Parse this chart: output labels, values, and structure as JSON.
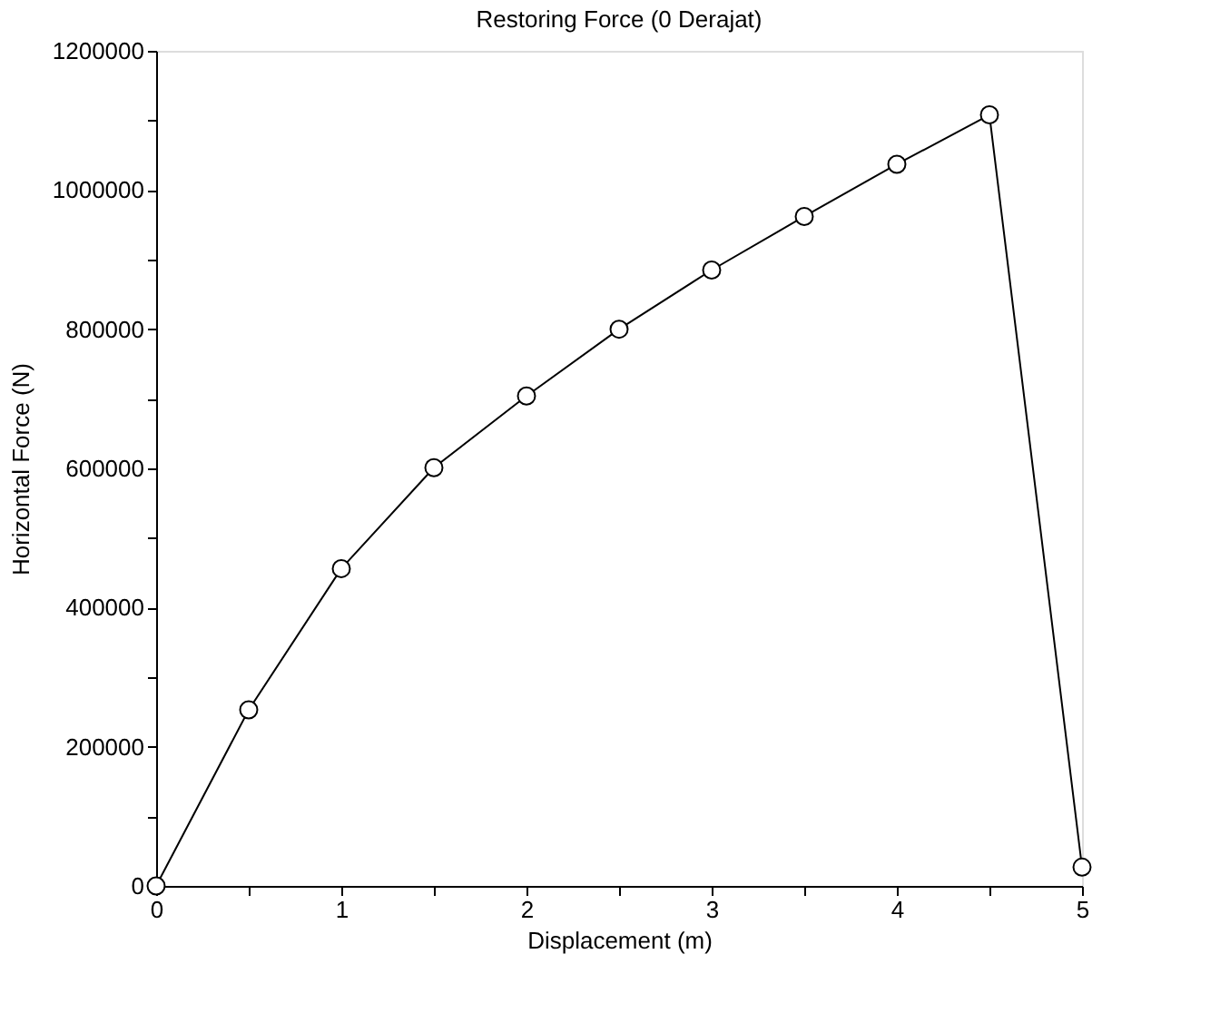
{
  "chart_data": {
    "type": "line",
    "title": "Restoring Force (0 Derajat)",
    "xlabel": "Displacement (m)",
    "ylabel": "Horizontal Force (N)",
    "x": [
      0,
      0.5,
      1,
      1.5,
      2,
      2.5,
      3,
      3.5,
      4,
      4.5,
      5
    ],
    "series": [
      {
        "color": "#000000",
        "values": [
          0,
          253000,
          456000,
          601000,
          704000,
          800000,
          885000,
          962000,
          1037000,
          1108000,
          27000
        ]
      }
    ],
    "xlim": [
      0,
      5
    ],
    "xticks": [
      0,
      {
        "value": 0.5,
        "label": null
      },
      1,
      {
        "value": 1.5,
        "label": null
      },
      2,
      {
        "value": 2.5,
        "label": null
      },
      3,
      {
        "value": 3.5,
        "label": null
      },
      4,
      {
        "value": 4.5,
        "label": null
      },
      5
    ],
    "ylim": [
      0,
      1200000
    ],
    "yticks": [
      0,
      {
        "value": 100000,
        "label": null
      },
      200000,
      {
        "value": 300000,
        "label": null
      },
      400000,
      {
        "value": 500000,
        "label": null
      },
      600000,
      {
        "value": 700000,
        "label": null
      },
      800000,
      {
        "value": 900000,
        "label": null
      },
      1000000,
      {
        "value": 1100000,
        "label": null
      },
      1200000
    ],
    "marker": "circle",
    "line_style": "solid",
    "grid": false
  }
}
